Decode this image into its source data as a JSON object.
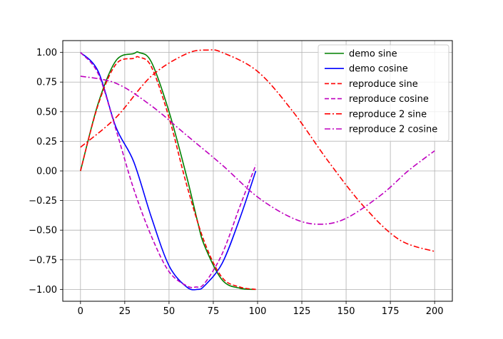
{
  "chart_data": {
    "type": "line",
    "title": "",
    "xlabel": "",
    "ylabel": "",
    "xlim": [
      -10,
      210
    ],
    "ylim": [
      -1.1,
      1.1
    ],
    "xticks": [
      0,
      25,
      50,
      75,
      100,
      125,
      150,
      175,
      200
    ],
    "yticks": [
      -1.0,
      -0.75,
      -0.5,
      -0.25,
      0.0,
      0.25,
      0.5,
      0.75,
      1.0
    ],
    "xtick_labels": [
      "0",
      "25",
      "50",
      "75",
      "100",
      "125",
      "150",
      "175",
      "200"
    ],
    "ytick_labels": [
      "−1.00",
      "−0.75",
      "−0.50",
      "−0.25",
      "0.00",
      "0.25",
      "0.50",
      "0.75",
      "1.00"
    ],
    "grid": true,
    "legend_position": "top-right",
    "series": [
      {
        "name": "demo sine",
        "color": "#008000",
        "dash": "solid",
        "x": [
          0,
          10,
          20,
          30,
          33,
          40,
          50,
          60,
          66,
          70,
          80,
          90,
          99
        ],
        "y": [
          0.0,
          0.57,
          0.93,
          0.99,
          1.0,
          0.92,
          0.5,
          -0.05,
          -0.42,
          -0.63,
          -0.92,
          -0.99,
          -1.0
        ]
      },
      {
        "name": "demo cosine",
        "color": "#0000ff",
        "dash": "solid",
        "x": [
          0,
          10,
          20,
          30,
          40,
          50,
          60,
          66,
          70,
          80,
          90,
          99
        ],
        "y": [
          1.0,
          0.84,
          0.37,
          0.08,
          -0.39,
          -0.8,
          -0.98,
          -1.0,
          -0.97,
          -0.78,
          -0.4,
          0.0
        ]
      },
      {
        "name": "reproduce sine",
        "color": "#ff0000",
        "dash": "dashed",
        "x": [
          0,
          10,
          20,
          30,
          33,
          40,
          50,
          60,
          70,
          80,
          90,
          99
        ],
        "y": [
          0.0,
          0.56,
          0.9,
          0.95,
          0.96,
          0.88,
          0.45,
          -0.12,
          -0.6,
          -0.9,
          -0.98,
          -1.0
        ]
      },
      {
        "name": "reproduce cosine",
        "color": "#bf00bf",
        "dash": "dashed",
        "x": [
          0,
          10,
          20,
          30,
          40,
          50,
          60,
          65,
          70,
          80,
          90,
          99
        ],
        "y": [
          1.0,
          0.82,
          0.35,
          -0.15,
          -0.55,
          -0.85,
          -0.97,
          -0.98,
          -0.95,
          -0.7,
          -0.3,
          0.05
        ]
      },
      {
        "name": "reproduce 2 sine",
        "color": "#ff0000",
        "dash": "dashdot",
        "x": [
          0,
          20,
          40,
          60,
          72,
          80,
          100,
          120,
          140,
          160,
          180,
          200
        ],
        "y": [
          0.2,
          0.45,
          0.8,
          0.99,
          1.02,
          1.0,
          0.84,
          0.5,
          0.08,
          -0.3,
          -0.58,
          -0.68
        ]
      },
      {
        "name": "reproduce 2 cosine",
        "color": "#bf00bf",
        "dash": "dashdot",
        "x": [
          0,
          20,
          40,
          60,
          80,
          100,
          120,
          135,
          150,
          170,
          185,
          200
        ],
        "y": [
          0.8,
          0.74,
          0.55,
          0.3,
          0.05,
          -0.22,
          -0.4,
          -0.45,
          -0.4,
          -0.2,
          0.0,
          0.17
        ]
      }
    ]
  }
}
